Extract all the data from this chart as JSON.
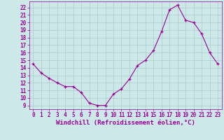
{
  "x_data": [
    0,
    1,
    2,
    3,
    4,
    5,
    6,
    7,
    8,
    9,
    10,
    11,
    12,
    13,
    14,
    15,
    16,
    17,
    18,
    19,
    20,
    21,
    22,
    23
  ],
  "y_data": [
    14.5,
    13.3,
    12.6,
    12.0,
    11.5,
    11.5,
    10.7,
    9.3,
    9.0,
    9.0,
    10.5,
    11.2,
    12.5,
    14.3,
    15.0,
    16.3,
    18.8,
    21.7,
    22.3,
    20.3,
    20.0,
    18.5,
    16.0,
    14.5
  ],
  "line_color": "#990099",
  "marker_color": "#990099",
  "bg_color": "#cce8e8",
  "grid_color": "#aacccc",
  "xlabel": "Windchill (Refroidissement éolien,°C)",
  "xlim": [
    -0.5,
    23.5
  ],
  "ylim": [
    8.5,
    22.8
  ],
  "yticks": [
    9,
    10,
    11,
    12,
    13,
    14,
    15,
    16,
    17,
    18,
    19,
    20,
    21,
    22
  ],
  "xticks": [
    0,
    1,
    2,
    3,
    4,
    5,
    6,
    7,
    8,
    9,
    10,
    11,
    12,
    13,
    14,
    15,
    16,
    17,
    18,
    19,
    20,
    21,
    22,
    23
  ],
  "xlabel_color": "#990099",
  "tick_color": "#990099",
  "axis_color": "#990099",
  "font_size": 5.5,
  "xlabel_font_size": 6.5
}
